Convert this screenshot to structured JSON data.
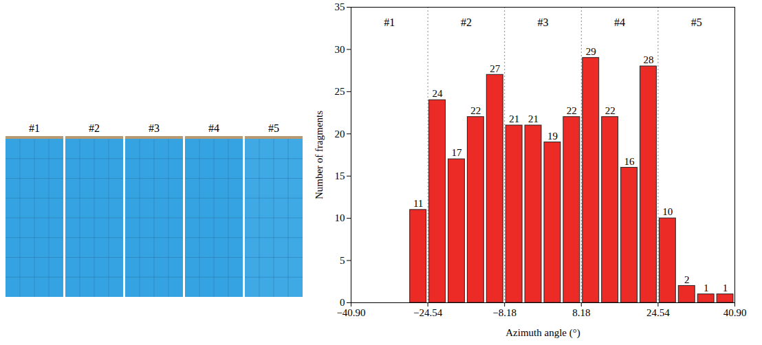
{
  "chart_data": {
    "type": "histogram",
    "x_label": "Azimuth angle (°)",
    "y_label": "Number of fragments",
    "bins": [
      -28.63,
      -24.54,
      -20.45,
      -16.36,
      -12.27,
      -8.18,
      -4.09,
      0,
      4.09,
      8.18,
      12.27,
      16.36,
      20.45,
      24.54,
      28.63,
      32.72,
      36.81,
      40.9
    ],
    "values": [
      11,
      24,
      17,
      22,
      27,
      21,
      21,
      19,
      22,
      29,
      22,
      16,
      28,
      10,
      2,
      1,
      1
    ],
    "color": "#ec2b27",
    "data_labels": true,
    "xlim": [
      -40.9,
      40.9
    ],
    "xticks": [
      {
        "value": -40.9,
        "label": "−40.90"
      },
      {
        "value": -24.54,
        "label": "−24.54"
      },
      {
        "value": -8.18,
        "label": "−8.18"
      },
      {
        "value": 8.18,
        "label": "8.18"
      },
      {
        "value": 24.54,
        "label": "24.54"
      },
      {
        "value": 40.9,
        "label": "40.90"
      }
    ],
    "ylim": [
      0,
      35
    ],
    "yticks": [
      0,
      5,
      10,
      15,
      20,
      25,
      30,
      35
    ],
    "sections": [
      {
        "label": "#1",
        "range": [
          -40.9,
          -24.54
        ]
      },
      {
        "label": "#2",
        "range": [
          -24.54,
          -8.18
        ]
      },
      {
        "label": "#3",
        "range": [
          -8.18,
          8.18
        ]
      },
      {
        "label": "#4",
        "range": [
          8.18,
          24.54
        ]
      },
      {
        "label": "#5",
        "range": [
          24.54,
          40.9
        ]
      }
    ]
  }
}
